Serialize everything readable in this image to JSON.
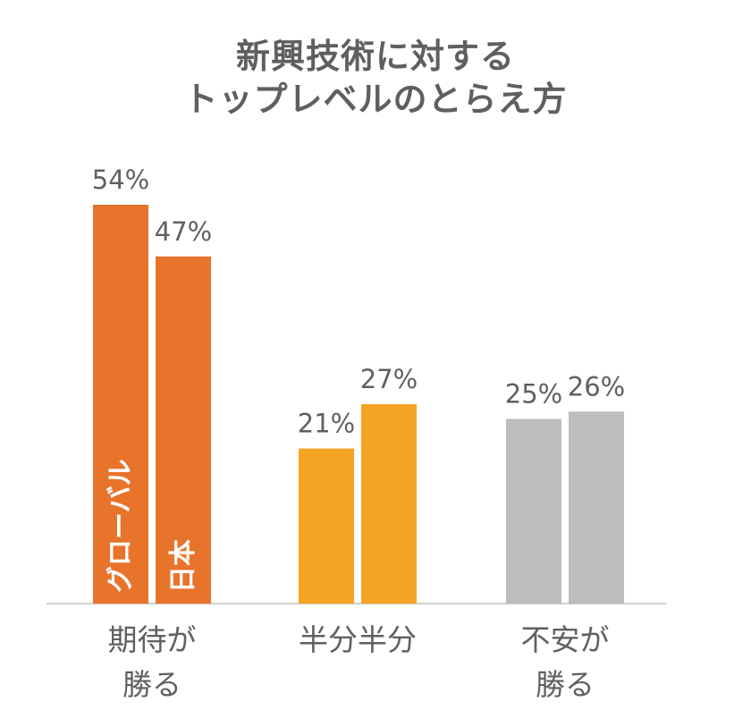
{
  "chart_data": {
    "type": "bar",
    "title_lines": [
      "新興技術に対する",
      "トップレベルのとらえ方"
    ],
    "categories": [
      {
        "lines": [
          "期待が",
          "勝る"
        ]
      },
      {
        "lines": [
          "半分半分"
        ]
      },
      {
        "lines": [
          "不安が",
          "勝る"
        ]
      }
    ],
    "series": [
      {
        "name": "グローバル",
        "values": [
          54,
          21,
          25
        ],
        "labels": [
          "54%",
          "21%",
          "25%"
        ]
      },
      {
        "name": "日本",
        "values": [
          47,
          27,
          26
        ],
        "labels": [
          "47%",
          "27%",
          "26%"
        ]
      }
    ],
    "bar_colors": [
      "#E8732A",
      "#F4A322",
      "#BDBDBD"
    ],
    "ylim": [
      0,
      54
    ],
    "legend_placement": "inside-first-group-bars"
  }
}
